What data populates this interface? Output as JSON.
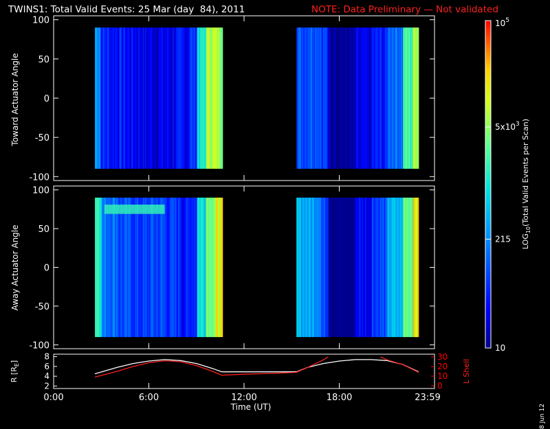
{
  "title": {
    "main": "TWINS1: Total Valid Events: 25 Mar (day  84), 2011",
    "note": "NOTE: Data Preliminary — Not validated",
    "note_color": "#ff2020"
  },
  "panels": {
    "top_ylabel": "Toward Actuator Angle",
    "bottom_ylabel": "Away Actuator Angle",
    "ephem_ylabel_left": "R [R",
    "ephem_ylabel_left_sub": "E",
    "ephem_ylabel_left_close": "]",
    "ephem_ylabel_right": "L Shell",
    "xlabel": "Time (UT)",
    "colorbar_label": "LOG",
    "colorbar_label_sub": "10",
    "colorbar_label_rest": "(Total Valid Events per Scan)",
    "date_stamp": "8 Jun 12"
  },
  "chart_data": [
    {
      "type": "heatmap",
      "name": "toward",
      "x_ticks": [
        "0:00",
        "6:00",
        "12:00",
        "18:00",
        "23:59"
      ],
      "x_tick_hours": [
        0,
        6,
        12,
        18,
        23.98
      ],
      "xlim": [
        0,
        24
      ],
      "ylim": [
        -105,
        105
      ],
      "y_ticks": [
        100,
        50,
        0,
        -50,
        -100
      ],
      "angle_range": [
        -90,
        90
      ],
      "data_intervals_hours": [
        [
          2.6,
          10.6
        ],
        [
          15.3,
          23.0
        ]
      ],
      "column_log_values": [
        [
          2.6,
          2.5
        ],
        [
          2.9,
          1.7
        ],
        [
          3.5,
          1.6
        ],
        [
          4.5,
          1.5
        ],
        [
          5.5,
          1.4
        ],
        [
          6.5,
          1.4
        ],
        [
          7.5,
          1.5
        ],
        [
          8.0,
          1.5
        ],
        [
          8.5,
          1.8
        ],
        [
          9.0,
          3.0
        ],
        [
          9.6,
          3.9
        ],
        [
          10.2,
          3.8
        ],
        [
          15.3,
          2.0
        ],
        [
          16.0,
          2.1
        ],
        [
          16.8,
          1.9
        ],
        [
          17.2,
          1.1
        ],
        [
          18.2,
          1.0
        ],
        [
          19.0,
          1.3
        ],
        [
          20.0,
          1.6
        ],
        [
          21.0,
          2.2
        ],
        [
          22.0,
          3.3
        ],
        [
          22.6,
          3.9
        ]
      ],
      "colorbar": {
        "ticks": [
          "10",
          "215",
          "5x10",
          "10"
        ],
        "tick_exponents": [
          "",
          "",
          "3",
          "5"
        ],
        "tick_log_values": [
          1.0,
          2.33,
          3.7,
          5.0
        ],
        "range": [
          1.0,
          5.0
        ]
      }
    },
    {
      "type": "heatmap",
      "name": "away",
      "x_ticks": [
        "0:00",
        "6:00",
        "12:00",
        "18:00",
        "23:59"
      ],
      "xlim": [
        0,
        24
      ],
      "ylim": [
        -105,
        105
      ],
      "y_ticks": [
        100,
        50,
        0,
        -50,
        -100
      ],
      "angle_range": [
        -90,
        90
      ],
      "data_intervals_hours": [
        [
          2.6,
          10.6
        ],
        [
          15.3,
          23.0
        ]
      ],
      "column_log_values": [
        [
          2.6,
          3.3
        ],
        [
          3.0,
          2.2
        ],
        [
          4.0,
          1.9
        ],
        [
          5.0,
          1.8
        ],
        [
          6.0,
          1.9
        ],
        [
          7.0,
          1.8
        ],
        [
          8.0,
          1.6
        ],
        [
          8.6,
          1.8
        ],
        [
          9.0,
          3.0
        ],
        [
          9.6,
          3.7
        ],
        [
          10.2,
          4.1
        ],
        [
          15.3,
          2.6
        ],
        [
          16.0,
          2.5
        ],
        [
          16.8,
          1.9
        ],
        [
          17.3,
          0.9
        ],
        [
          18.3,
          0.9
        ],
        [
          19.0,
          1.5
        ],
        [
          20.0,
          1.9
        ],
        [
          21.0,
          2.6
        ],
        [
          22.0,
          3.6
        ],
        [
          22.6,
          4.2
        ]
      ],
      "feature": {
        "hours": [
          3.2,
          7.0
        ],
        "angle": 75,
        "log_value": 3.2
      }
    },
    {
      "type": "line",
      "name": "ephemeris",
      "x_ticks": [
        "0:00",
        "6:00",
        "12:00",
        "18:00",
        "23:59"
      ],
      "xlim": [
        0,
        24
      ],
      "left_axis": {
        "ticks": [
          "2",
          "4",
          "6",
          "8"
        ],
        "ylim": [
          1.5,
          8.5
        ]
      },
      "right_axis": {
        "ticks": [
          "0",
          "10",
          "20",
          "30"
        ],
        "ylim": [
          0,
          30
        ],
        "color": "#ff0000"
      },
      "series": [
        {
          "axis": "left",
          "color": "#ffffff",
          "x": [
            2.6,
            4,
            5,
            6,
            7,
            8,
            9,
            10,
            10.6,
            12,
            14,
            15.3,
            16,
            17,
            18,
            19,
            20,
            21,
            22,
            23
          ],
          "y": [
            4.5,
            5.8,
            6.6,
            7.1,
            7.4,
            7.2,
            6.6,
            5.6,
            4.9,
            4.9,
            4.9,
            4.9,
            5.8,
            6.6,
            7.1,
            7.4,
            7.4,
            7.2,
            6.4,
            4.9
          ]
        },
        {
          "axis": "right",
          "color": "#ff2020",
          "x": [
            2.6,
            4,
            5,
            6,
            7,
            8,
            9,
            10,
            10.6,
            12,
            14,
            15.3,
            16,
            17,
            17.3
          ],
          "y": [
            9,
            15,
            20,
            24,
            26,
            25,
            21,
            15,
            11,
            12,
            13,
            14,
            19,
            27,
            30
          ]
        },
        {
          "axis": "right",
          "color": "#ff2020",
          "x": [
            20.6,
            21,
            22,
            23
          ],
          "y": [
            30,
            27,
            22,
            14
          ]
        }
      ]
    }
  ]
}
